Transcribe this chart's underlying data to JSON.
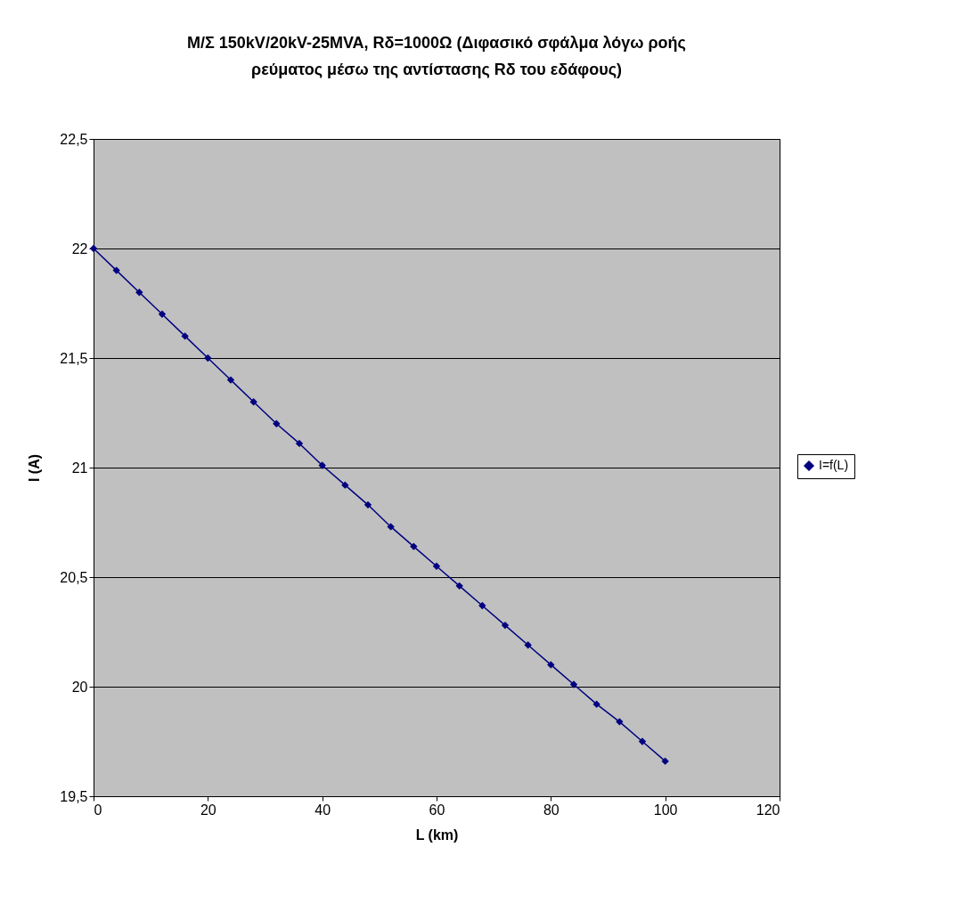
{
  "chart_data": {
    "type": "line",
    "title": "Μ/Σ 150kV/20kV-25MVA, Rδ=1000Ω (Διφασικό σφάλμα λόγω ροής ρεύματος μέσω της αντίστασης Rδ του εδάφους)",
    "xlabel": "L (km)",
    "ylabel": "I (A)",
    "x": [
      0,
      4,
      8,
      12,
      16,
      20,
      24,
      28,
      32,
      36,
      40,
      44,
      48,
      52,
      56,
      60,
      64,
      68,
      72,
      76,
      80,
      84,
      88,
      92,
      96,
      100
    ],
    "series": [
      {
        "name": "I=f(L)",
        "color": "#000080",
        "values": [
          22.0,
          21.9,
          21.8,
          21.7,
          21.6,
          21.5,
          21.4,
          21.3,
          21.2,
          21.11,
          21.01,
          20.92,
          20.83,
          20.73,
          20.64,
          20.55,
          20.46,
          20.37,
          20.28,
          20.19,
          20.1,
          20.01,
          19.92,
          19.84,
          19.75,
          19.66
        ]
      }
    ],
    "xlim": [
      0,
      120
    ],
    "xticks": [
      0,
      20,
      40,
      60,
      80,
      100,
      120
    ],
    "ylim": [
      19.5,
      22.5
    ],
    "yticks": [
      {
        "value": 19.5,
        "label": "19,5"
      },
      20,
      {
        "value": 20.5,
        "label": "20,5"
      },
      21,
      {
        "value": 21.5,
        "label": "21,5"
      },
      22,
      {
        "value": 22.5,
        "label": "22,5"
      }
    ],
    "grid": "y",
    "legend": "right",
    "marker": "diamond",
    "line_style": "solid"
  }
}
